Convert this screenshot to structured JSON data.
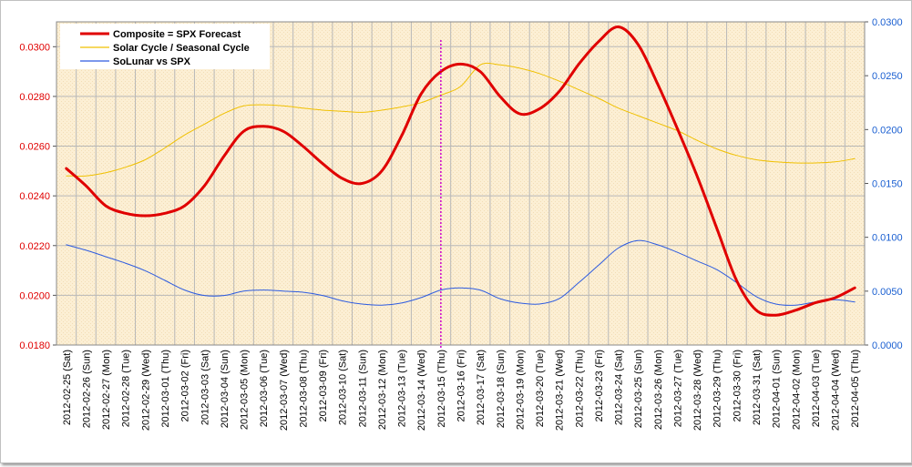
{
  "chart_data": {
    "type": "line",
    "title": "",
    "categories": [
      "2012-02-25 (Sat)",
      "2012-02-26 (Sun)",
      "2012-02-27 (Mon)",
      "2012-02-28 (Tue)",
      "2012-02-29 (Wed)",
      "2012-03-01 (Thu)",
      "2012-03-02 (Fri)",
      "2012-03-03 (Sat)",
      "2012-03-04 (Sun)",
      "2012-03-05 (Mon)",
      "2012-03-06 (Tue)",
      "2012-03-07 (Wed)",
      "2012-03-08 (Thu)",
      "2012-03-09 (Fri)",
      "2012-03-10 (Sat)",
      "2012-03-11 (Sun)",
      "2012-03-12 (Mon)",
      "2012-03-13 (Tue)",
      "2012-03-14 (Wed)",
      "2012-03-15 (Thu)",
      "2012-03-16 (Fri)",
      "2012-03-17 (Sat)",
      "2012-03-18 (Sun)",
      "2012-03-19 (Mon)",
      "2012-03-20 (Tue)",
      "2012-03-21 (Wed)",
      "2012-03-22 (Thu)",
      "2012-03-23 (Fri)",
      "2012-03-24 (Sat)",
      "2012-03-25 (Sun)",
      "2012-03-26 (Mon)",
      "2012-03-27 (Tue)",
      "2012-03-28 (Wed)",
      "2012-03-29 (Thu)",
      "2012-03-30 (Fri)",
      "2012-03-31 (Sat)",
      "2012-04-01 (Sun)",
      "2012-04-02 (Mon)",
      "2012-04-03 (Tue)",
      "2012-04-04 (Wed)",
      "2012-04-05 (Thu)"
    ],
    "y_left": {
      "min": 0.018,
      "max": 0.031,
      "ticks": [
        "0.0180",
        "0.0200",
        "0.0220",
        "0.0240",
        "0.0260",
        "0.0280",
        "0.0300"
      ],
      "tick_values": [
        0.018,
        0.02,
        0.022,
        0.024,
        0.026,
        0.028,
        0.03
      ],
      "color": "#e00000"
    },
    "y_right": {
      "min": 0.0,
      "max": 0.03,
      "ticks": [
        "0.0000",
        "0.0050",
        "0.0100",
        "0.0150",
        "0.0200",
        "0.0250",
        "0.0300"
      ],
      "tick_values": [
        0.0,
        0.005,
        0.01,
        0.015,
        0.02,
        0.025,
        0.03
      ],
      "color": "#1a5fd1"
    },
    "series": [
      {
        "name": "Composite = SPX Forecast",
        "axis": "left",
        "color": "#e00000",
        "width": 3,
        "values": [
          0.0251,
          0.0244,
          0.0236,
          0.0233,
          0.0232,
          0.0233,
          0.0236,
          0.0244,
          0.0256,
          0.0266,
          0.0268,
          0.0266,
          0.026,
          0.0253,
          0.0247,
          0.0245,
          0.025,
          0.0264,
          0.0281,
          0.029,
          0.0293,
          0.029,
          0.028,
          0.0273,
          0.0275,
          0.0282,
          0.0293,
          0.0302,
          0.0308,
          0.0301,
          0.0285,
          0.0267,
          0.0248,
          0.0227,
          0.0206,
          0.0194,
          0.0192,
          0.0194,
          0.0197,
          0.0199,
          0.0203
        ]
      },
      {
        "name": "Solar Cycle / Seasonal Cycle",
        "axis": "right",
        "color": "#f0c000",
        "width": 1,
        "values": [
          0.0157,
          0.0157,
          0.016,
          0.0165,
          0.0172,
          0.0183,
          0.0195,
          0.0205,
          0.0215,
          0.0222,
          0.0223,
          0.0222,
          0.022,
          0.0218,
          0.0217,
          0.0216,
          0.0218,
          0.0221,
          0.0225,
          0.0232,
          0.024,
          0.026,
          0.026,
          0.0257,
          0.0252,
          0.0245,
          0.0237,
          0.0229,
          0.022,
          0.0213,
          0.0206,
          0.0199,
          0.019,
          0.0182,
          0.0176,
          0.0172,
          0.017,
          0.0169,
          0.0169,
          0.017,
          0.0173
        ]
      },
      {
        "name": "SoLunar vs SPX",
        "axis": "right",
        "color": "#2d5be0",
        "width": 1,
        "values": [
          0.0093,
          0.0088,
          0.0082,
          0.0076,
          0.0069,
          0.006,
          0.0051,
          0.0046,
          0.0046,
          0.005,
          0.0051,
          0.005,
          0.0049,
          0.0046,
          0.0041,
          0.0038,
          0.0037,
          0.0039,
          0.0044,
          0.0051,
          0.0053,
          0.0051,
          0.0043,
          0.0039,
          0.0038,
          0.0043,
          0.0058,
          0.0074,
          0.009,
          0.0097,
          0.0093,
          0.0086,
          0.0078,
          0.007,
          0.0058,
          0.0045,
          0.0038,
          0.0037,
          0.004,
          0.0042,
          0.004
        ]
      }
    ],
    "marker": {
      "category": "2012-03-15 (Thu)",
      "color": "#cc00cc",
      "style": "dotted"
    },
    "grid": true,
    "legend": "top-left",
    "plot_background": "#fcefd4"
  }
}
